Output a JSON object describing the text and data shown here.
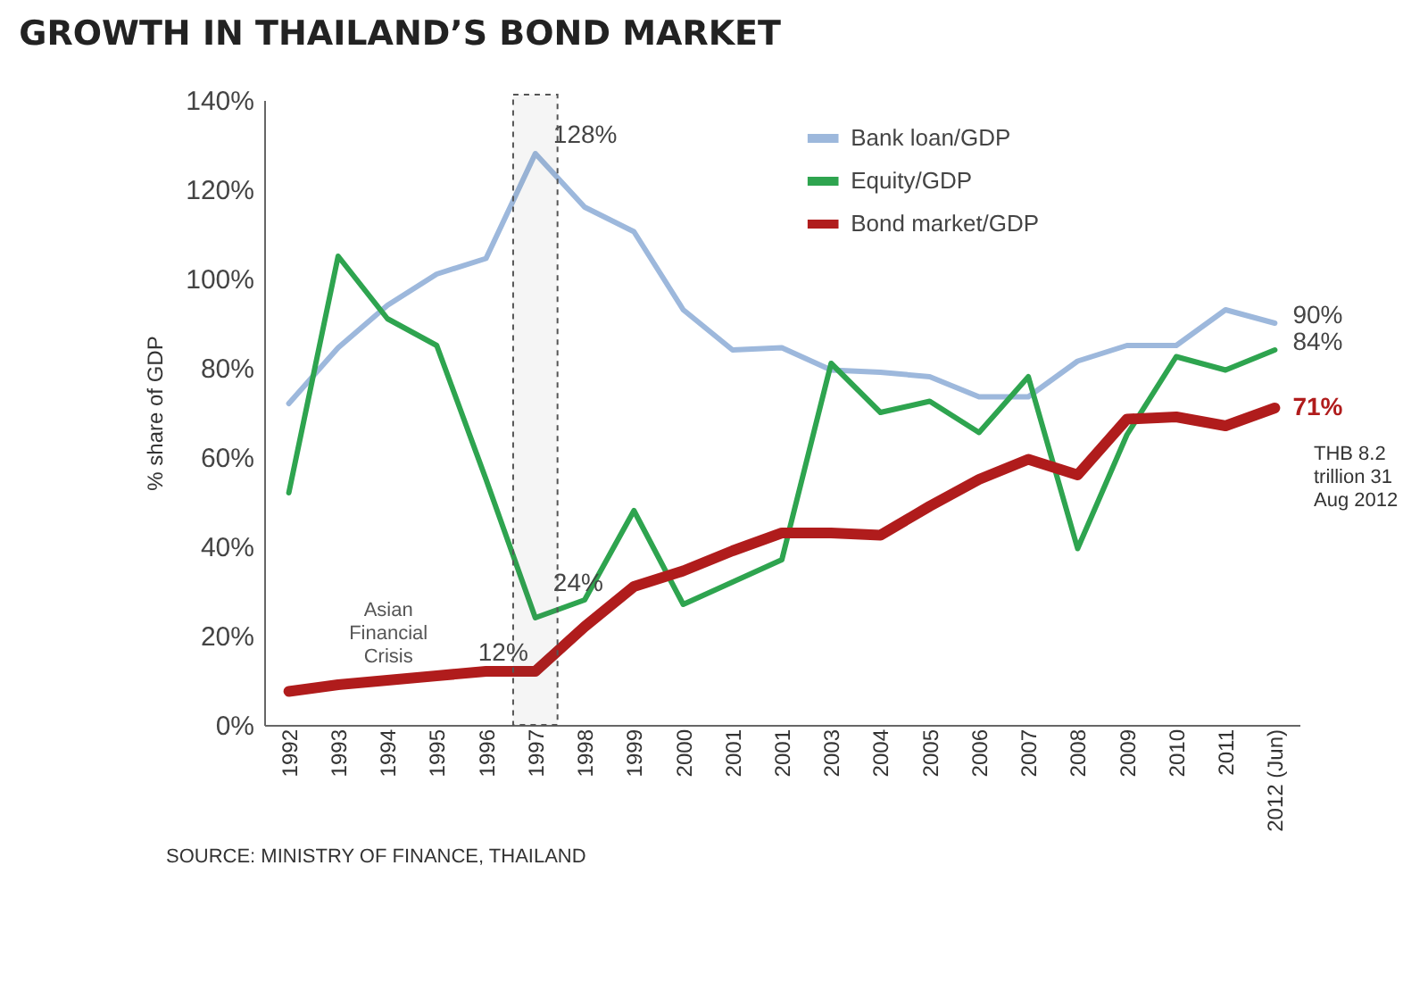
{
  "chart_data": {
    "type": "line",
    "title": "GROWTH IN THAILAND’S BOND MARKET",
    "ylabel": "% share of GDP",
    "categories": [
      "1992",
      "1993",
      "1994",
      "1995",
      "1996",
      "1997",
      "1998",
      "1999",
      "2000",
      "2001",
      "2001",
      "2003",
      "2004",
      "2005",
      "2006",
      "2007",
      "2008",
      "2009",
      "2010",
      "2011",
      "2012 (Jun)"
    ],
    "series": [
      {
        "name": "Bank loan/GDP",
        "color": "#9db8dc",
        "values": [
          72,
          84.5,
          94,
          101,
          104.5,
          128,
          116,
          110.5,
          93,
          84,
          84.5,
          79.5,
          79,
          78,
          73.5,
          73.5,
          81.5,
          85,
          85,
          93,
          90
        ],
        "value_labels": [
          null,
          null,
          null,
          null,
          null,
          "128%",
          null,
          null,
          null,
          null,
          null,
          null,
          null,
          null,
          null,
          null,
          null,
          null,
          null,
          null,
          "90%"
        ]
      },
      {
        "name": "Equity/GDP",
        "color": "#2ea44f",
        "values": [
          52,
          105,
          91,
          85,
          55,
          24,
          28,
          48,
          27,
          32,
          37,
          81,
          70,
          72.5,
          65.5,
          78,
          39.5,
          65,
          82.5,
          79.5,
          84
        ],
        "value_labels": [
          null,
          null,
          null,
          null,
          null,
          "24%",
          null,
          null,
          null,
          null,
          null,
          null,
          null,
          null,
          null,
          null,
          null,
          null,
          null,
          null,
          "84%"
        ]
      },
      {
        "name": "Bond market/GDP",
        "color": "#b01c1c",
        "values": [
          7.5,
          9,
          10,
          11,
          12,
          12,
          22,
          31,
          34.5,
          39,
          43,
          43,
          42.5,
          49,
          55,
          59.5,
          56,
          68.5,
          69,
          67,
          71
        ],
        "value_labels": [
          null,
          null,
          null,
          null,
          null,
          "12%",
          null,
          null,
          null,
          null,
          null,
          null,
          null,
          null,
          null,
          null,
          null,
          null,
          null,
          null,
          "71%"
        ]
      }
    ],
    "ylim": [
      0,
      140
    ],
    "yticks": [
      {
        "value": 0,
        "label": "0%"
      },
      {
        "value": 20,
        "label": "20%"
      },
      {
        "value": 40,
        "label": "40%"
      },
      {
        "value": 60,
        "label": "60%"
      },
      {
        "value": 80,
        "label": "80%"
      },
      {
        "value": 100,
        "label": "100%"
      },
      {
        "value": 120,
        "label": "120%"
      },
      {
        "value": 140,
        "label": "140%"
      }
    ],
    "bands": [
      {
        "axis": "x",
        "from": "1997",
        "to": "1997",
        "color": "#555555"
      }
    ],
    "annotations": [
      "Asian Financial Crisis",
      "THB 8.2 trillion 31 Aug 2012",
      "SOURCE: MINISTRY OF FINANCE, THAILAND"
    ],
    "legend": "top",
    "grid": false
  }
}
